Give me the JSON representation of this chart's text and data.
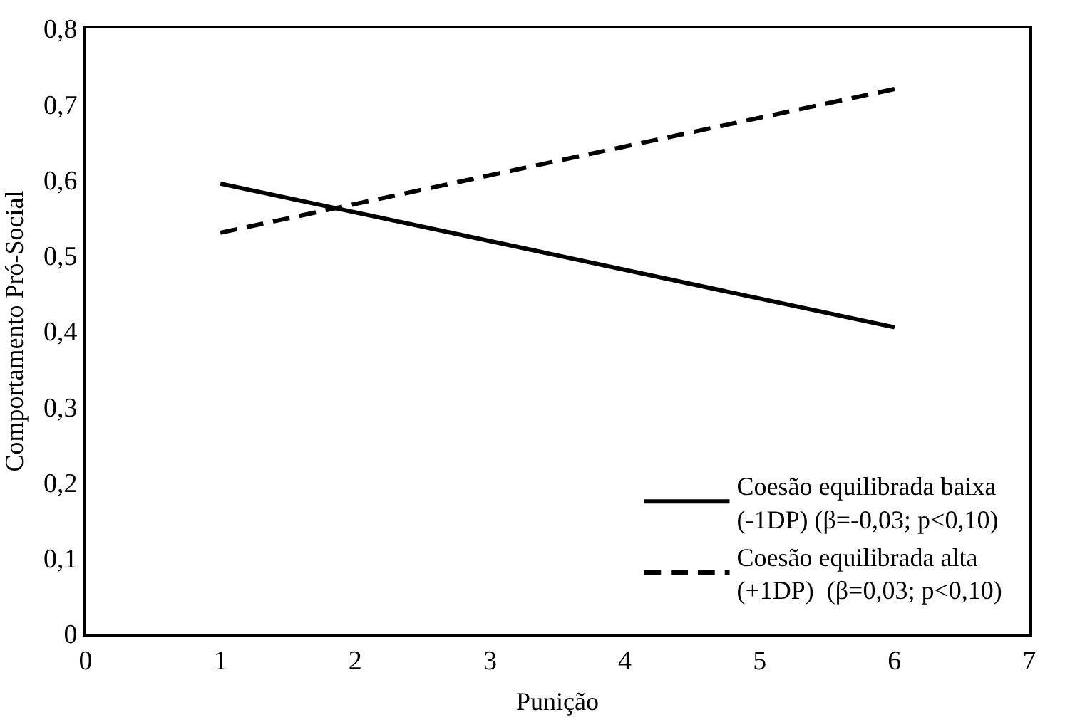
{
  "chart_data": {
    "type": "line",
    "xlabel": "Punição",
    "ylabel": "Comportamento Pró-Social",
    "x": [
      1,
      6
    ],
    "series": [
      {
        "name": "Coesão equilibrada baixa\n(-1DP) (β=-0,03; p<0,10)",
        "color": "#000000",
        "values": [
          0.595,
          0.405
        ],
        "line_style": "solid"
      },
      {
        "name": "Coesão equilibrada alta\n(+1DP)  (β=0,03; p<0,10)",
        "color": "#000000",
        "values": [
          0.53,
          0.72
        ],
        "line_style": "dashed"
      }
    ],
    "xlim": [
      0,
      7
    ],
    "xticks": [
      0,
      1,
      2,
      3,
      4,
      5,
      6,
      7
    ],
    "ylim": [
      0,
      0.8
    ],
    "yticks": [
      {
        "value": 0,
        "label": "0"
      },
      {
        "value": 0.1,
        "label": "0,1"
      },
      {
        "value": 0.2,
        "label": "0,2"
      },
      {
        "value": 0.3,
        "label": "0,3"
      },
      {
        "value": 0.4,
        "label": "0,4"
      },
      {
        "value": 0.5,
        "label": "0,5"
      },
      {
        "value": 0.6,
        "label": "0,6"
      },
      {
        "value": 0.7,
        "label": "0,7"
      },
      {
        "value": 0.8,
        "label": "0,8"
      }
    ],
    "legend": "bottom right",
    "marker": "none"
  }
}
